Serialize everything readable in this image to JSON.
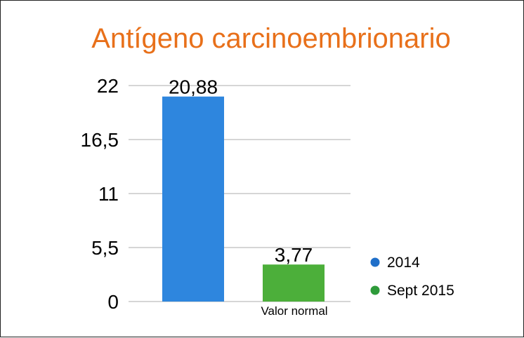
{
  "chart_data": {
    "type": "bar",
    "title": "Antígeno carcinoembrionario",
    "title_color": "#E8701A",
    "x_tick_label": "Valor normal",
    "yticks": [
      "0",
      "5,5",
      "11",
      "16,5",
      "22"
    ],
    "ylim": [
      0,
      22
    ],
    "grid": true,
    "legend_position": "right",
    "series": [
      {
        "name": "2014",
        "value": 20.88,
        "label": "20,88",
        "bar_color": "#2E86DE",
        "legend_color": "#1F6FC9"
      },
      {
        "name": "Sept 2015",
        "value": 3.77,
        "label": "3,77",
        "bar_color": "#4CAF3A",
        "legend_color": "#2E9B3A"
      }
    ]
  }
}
